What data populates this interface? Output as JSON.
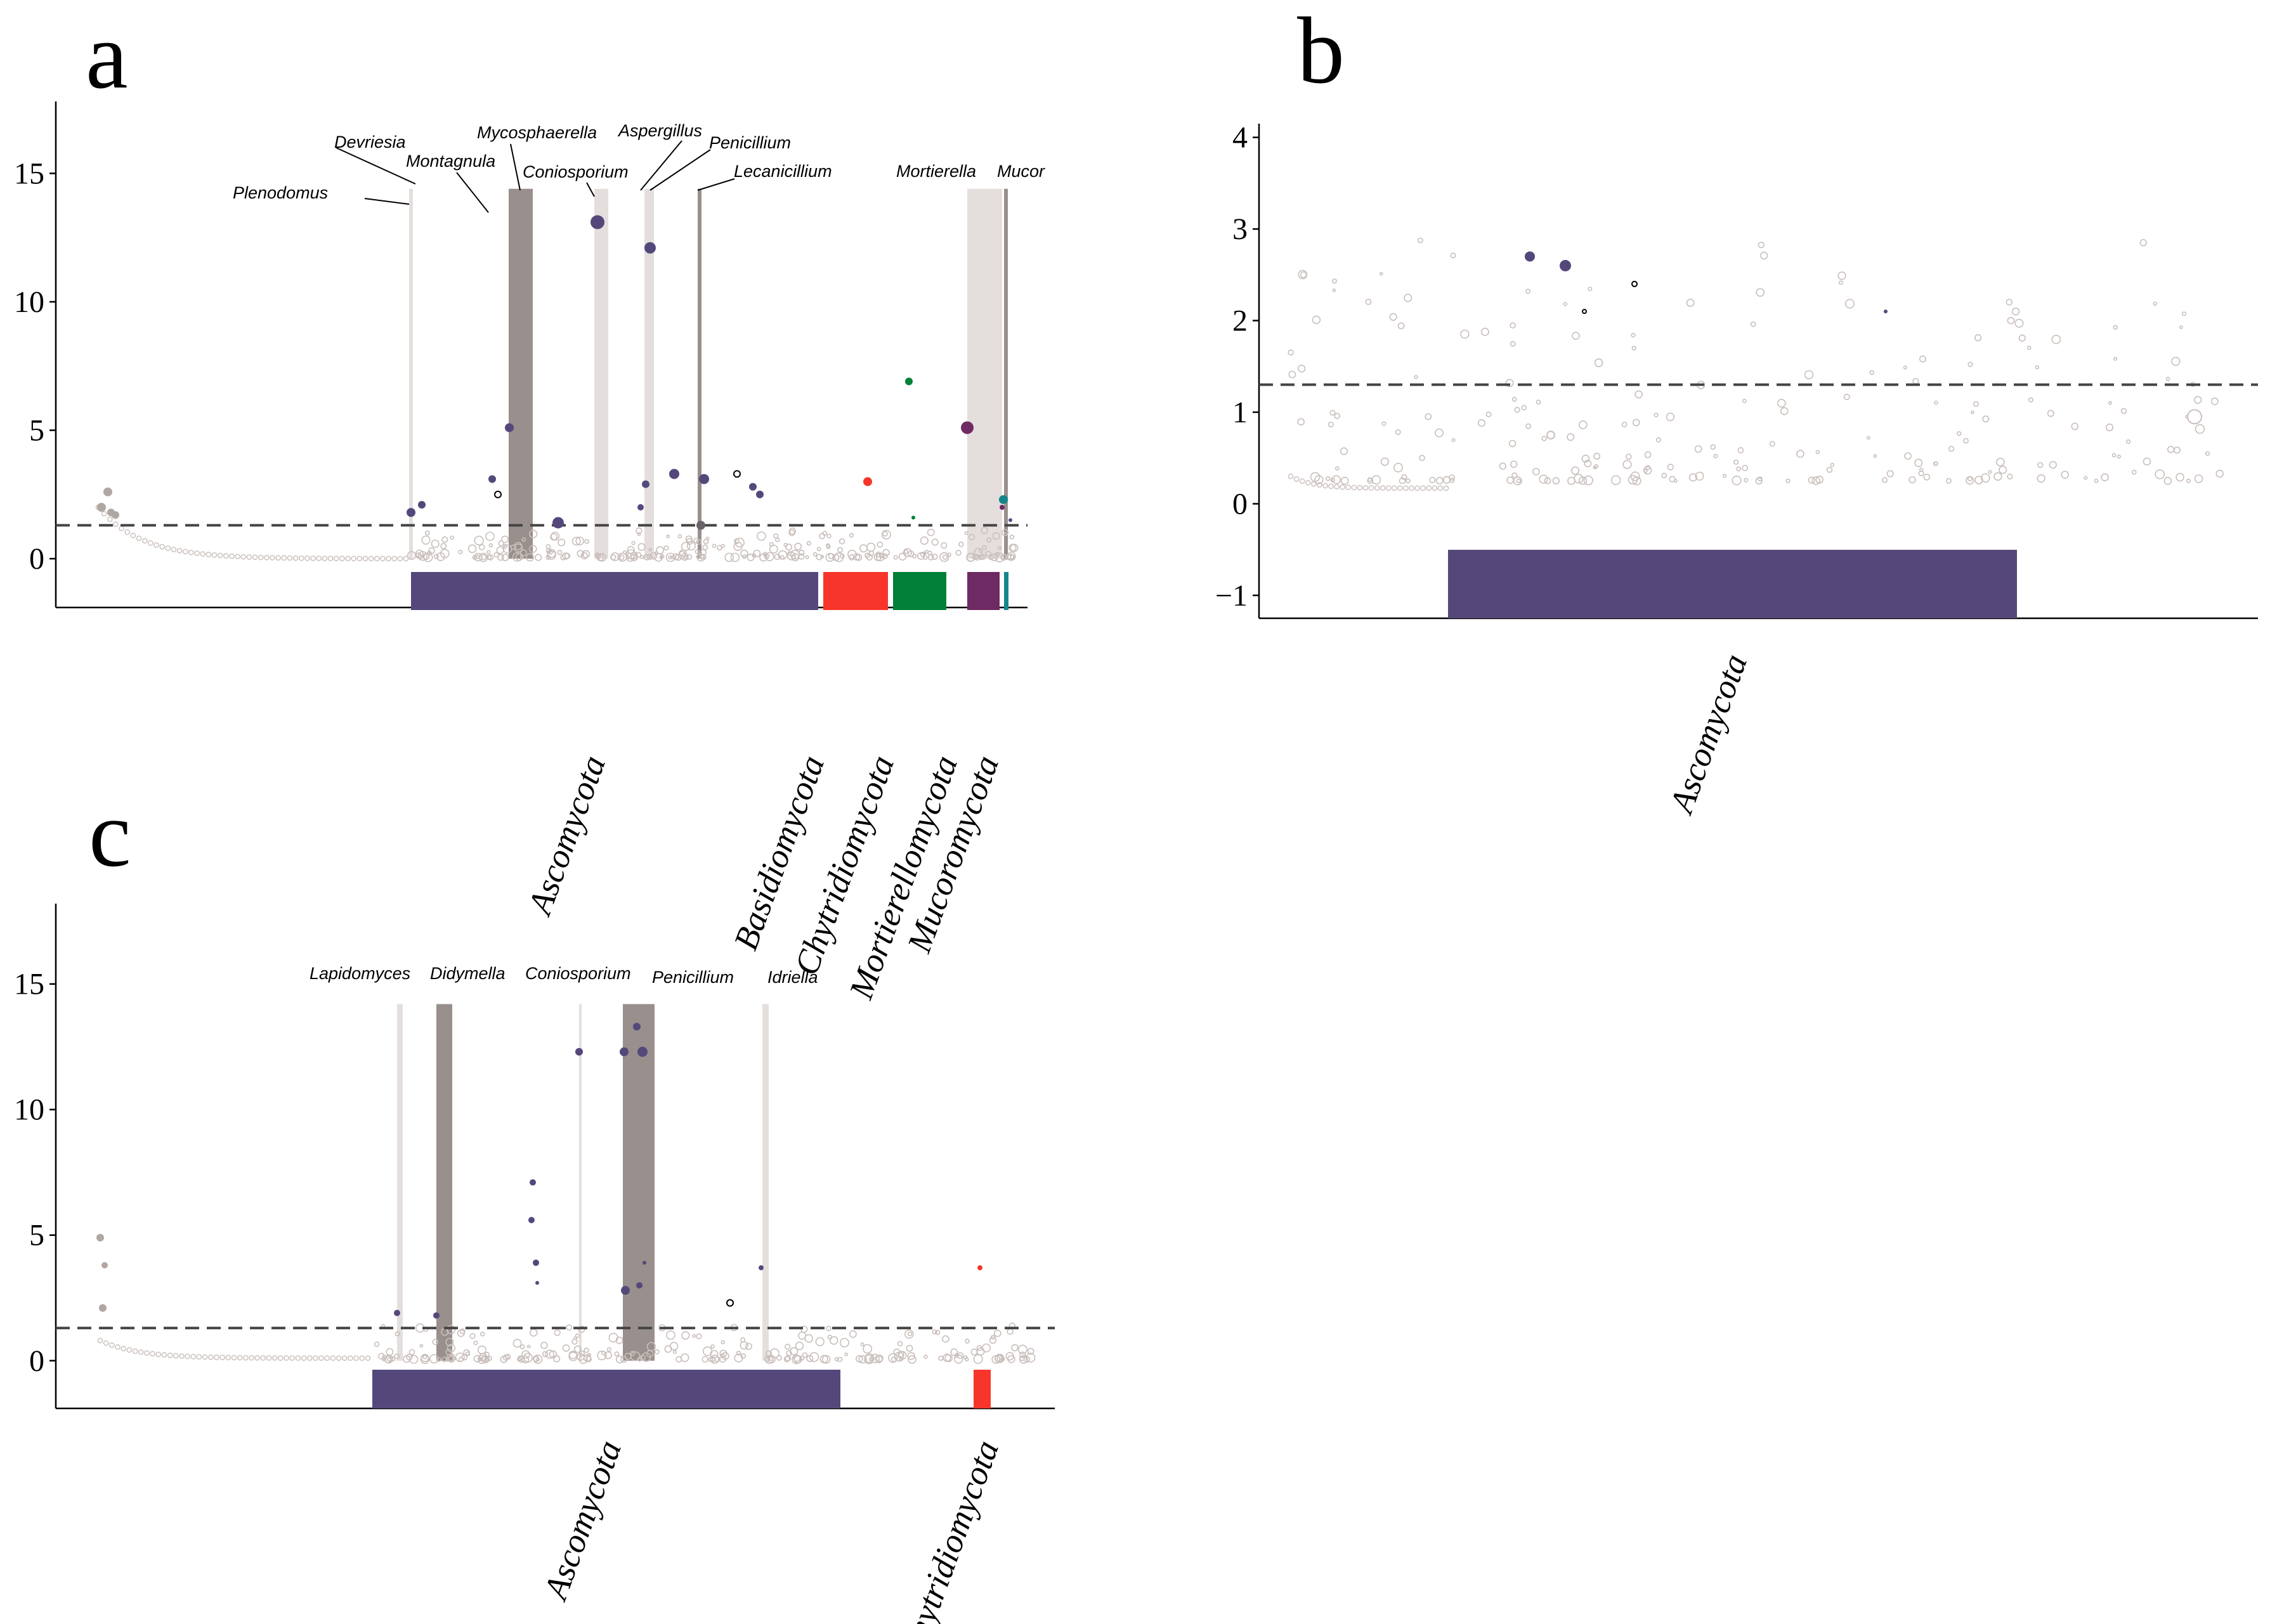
{
  "chart_data": [
    {
      "id": "a",
      "type": "scatter",
      "panel_label": "a",
      "ylim": [
        -1.9,
        17.8
      ],
      "yticks": [
        0,
        5,
        10,
        15
      ],
      "threshold": 1.3,
      "phyla": [
        {
          "name": "Ascomycota",
          "color": "#54487B"
        },
        {
          "name": "Basidiomycota",
          "color": "#F8352B"
        },
        {
          "name": "Chytridiomycota",
          "color": "#008038"
        },
        {
          "name": "Mortierellomycota",
          "color": "#6E2A63"
        },
        {
          "name": "Mucoromycota",
          "color": "#14878C"
        }
      ],
      "genera": [
        "Devriesia",
        "Montagnula",
        "Mycosphaerella",
        "Plenodomus",
        "Coniosporium",
        "Aspergillus",
        "Penicillium",
        "Lecanicillium",
        "Mortierella",
        "Mucor"
      ],
      "significant_points": [
        {
          "y": 13.1,
          "phylum": "Ascomycota"
        },
        {
          "y": 12.1,
          "phylum": "Ascomycota"
        },
        {
          "y": 5.1,
          "phylum": "Ascomycota"
        },
        {
          "y": 3.3,
          "phylum": "Ascomycota"
        },
        {
          "y": 3.1,
          "phylum": "Ascomycota"
        },
        {
          "y": 3.1,
          "phylum": "Ascomycota"
        },
        {
          "y": 2.9,
          "phylum": "Ascomycota"
        },
        {
          "y": 2.8,
          "phylum": "Ascomycota"
        },
        {
          "y": 2.5,
          "phylum": "Ascomycota"
        },
        {
          "y": 2.1,
          "phylum": "Ascomycota"
        },
        {
          "y": 2.0,
          "phylum": "Ascomycota"
        },
        {
          "y": 1.8,
          "phylum": "Ascomycota"
        },
        {
          "y": 1.5,
          "phylum": "Ascomycota"
        },
        {
          "y": 3.0,
          "phylum": "Basidiomycota"
        },
        {
          "y": 6.9,
          "phylum": "Chytridiomycota"
        },
        {
          "y": 1.6,
          "phylum": "Chytridiomycota"
        },
        {
          "y": 5.1,
          "phylum": "Mortierellomycota"
        },
        {
          "y": 2.0,
          "phylum": "Mortierellomycota"
        },
        {
          "y": 2.3,
          "phylum": "Mucoromycota"
        }
      ]
    },
    {
      "id": "b",
      "type": "scatter",
      "panel_label": "b",
      "ylim": [
        -1.25,
        4.15
      ],
      "yticks": [
        -1,
        0,
        1,
        2,
        3,
        4
      ],
      "threshold": 1.3,
      "phyla": [
        {
          "name": "Ascomycota",
          "color": "#54487B"
        }
      ],
      "genera": [],
      "significant_points": [
        {
          "y": 2.7,
          "phylum": "Ascomycota"
        },
        {
          "y": 2.6,
          "phylum": "Ascomycota"
        },
        {
          "y": 2.4,
          "phylum": "Ascomycota"
        },
        {
          "y": 2.1,
          "phylum": "Ascomycota"
        },
        {
          "y": 2.1,
          "phylum": "Ascomycota"
        }
      ]
    },
    {
      "id": "c",
      "type": "scatter",
      "panel_label": "c",
      "ylim": [
        -1.9,
        18.2
      ],
      "yticks": [
        0,
        5,
        10,
        15
      ],
      "threshold": 1.3,
      "phyla": [
        {
          "name": "Ascomycota",
          "color": "#54487B"
        },
        {
          "name": "Chytridiomycota",
          "color": "#F8352B"
        }
      ],
      "genera": [
        "Lapidomyces",
        "Didymella",
        "Coniosporium",
        "Penicillium",
        "Idriella"
      ],
      "significant_points": [
        {
          "y": 13.3,
          "phylum": "Ascomycota"
        },
        {
          "y": 12.3,
          "phylum": "Ascomycota"
        },
        {
          "y": 12.3,
          "phylum": "Ascomycota"
        },
        {
          "y": 12.3,
          "phylum": "Ascomycota"
        },
        {
          "y": 7.1,
          "phylum": "Ascomycota"
        },
        {
          "y": 5.6,
          "phylum": "Ascomycota"
        },
        {
          "y": 3.9,
          "phylum": "Ascomycota"
        },
        {
          "y": 3.9,
          "phylum": "Ascomycota"
        },
        {
          "y": 3.7,
          "phylum": "Ascomycota"
        },
        {
          "y": 3.1,
          "phylum": "Ascomycota"
        },
        {
          "y": 3.0,
          "phylum": "Ascomycota"
        },
        {
          "y": 2.8,
          "phylum": "Ascomycota"
        },
        {
          "y": 2.3,
          "phylum": "Ascomycota"
        },
        {
          "y": 1.9,
          "phylum": "Ascomycota"
        },
        {
          "y": 1.8,
          "phylum": "Ascomycota"
        },
        {
          "y": 3.7,
          "phylum": "Chytridiomycota"
        }
      ]
    }
  ]
}
